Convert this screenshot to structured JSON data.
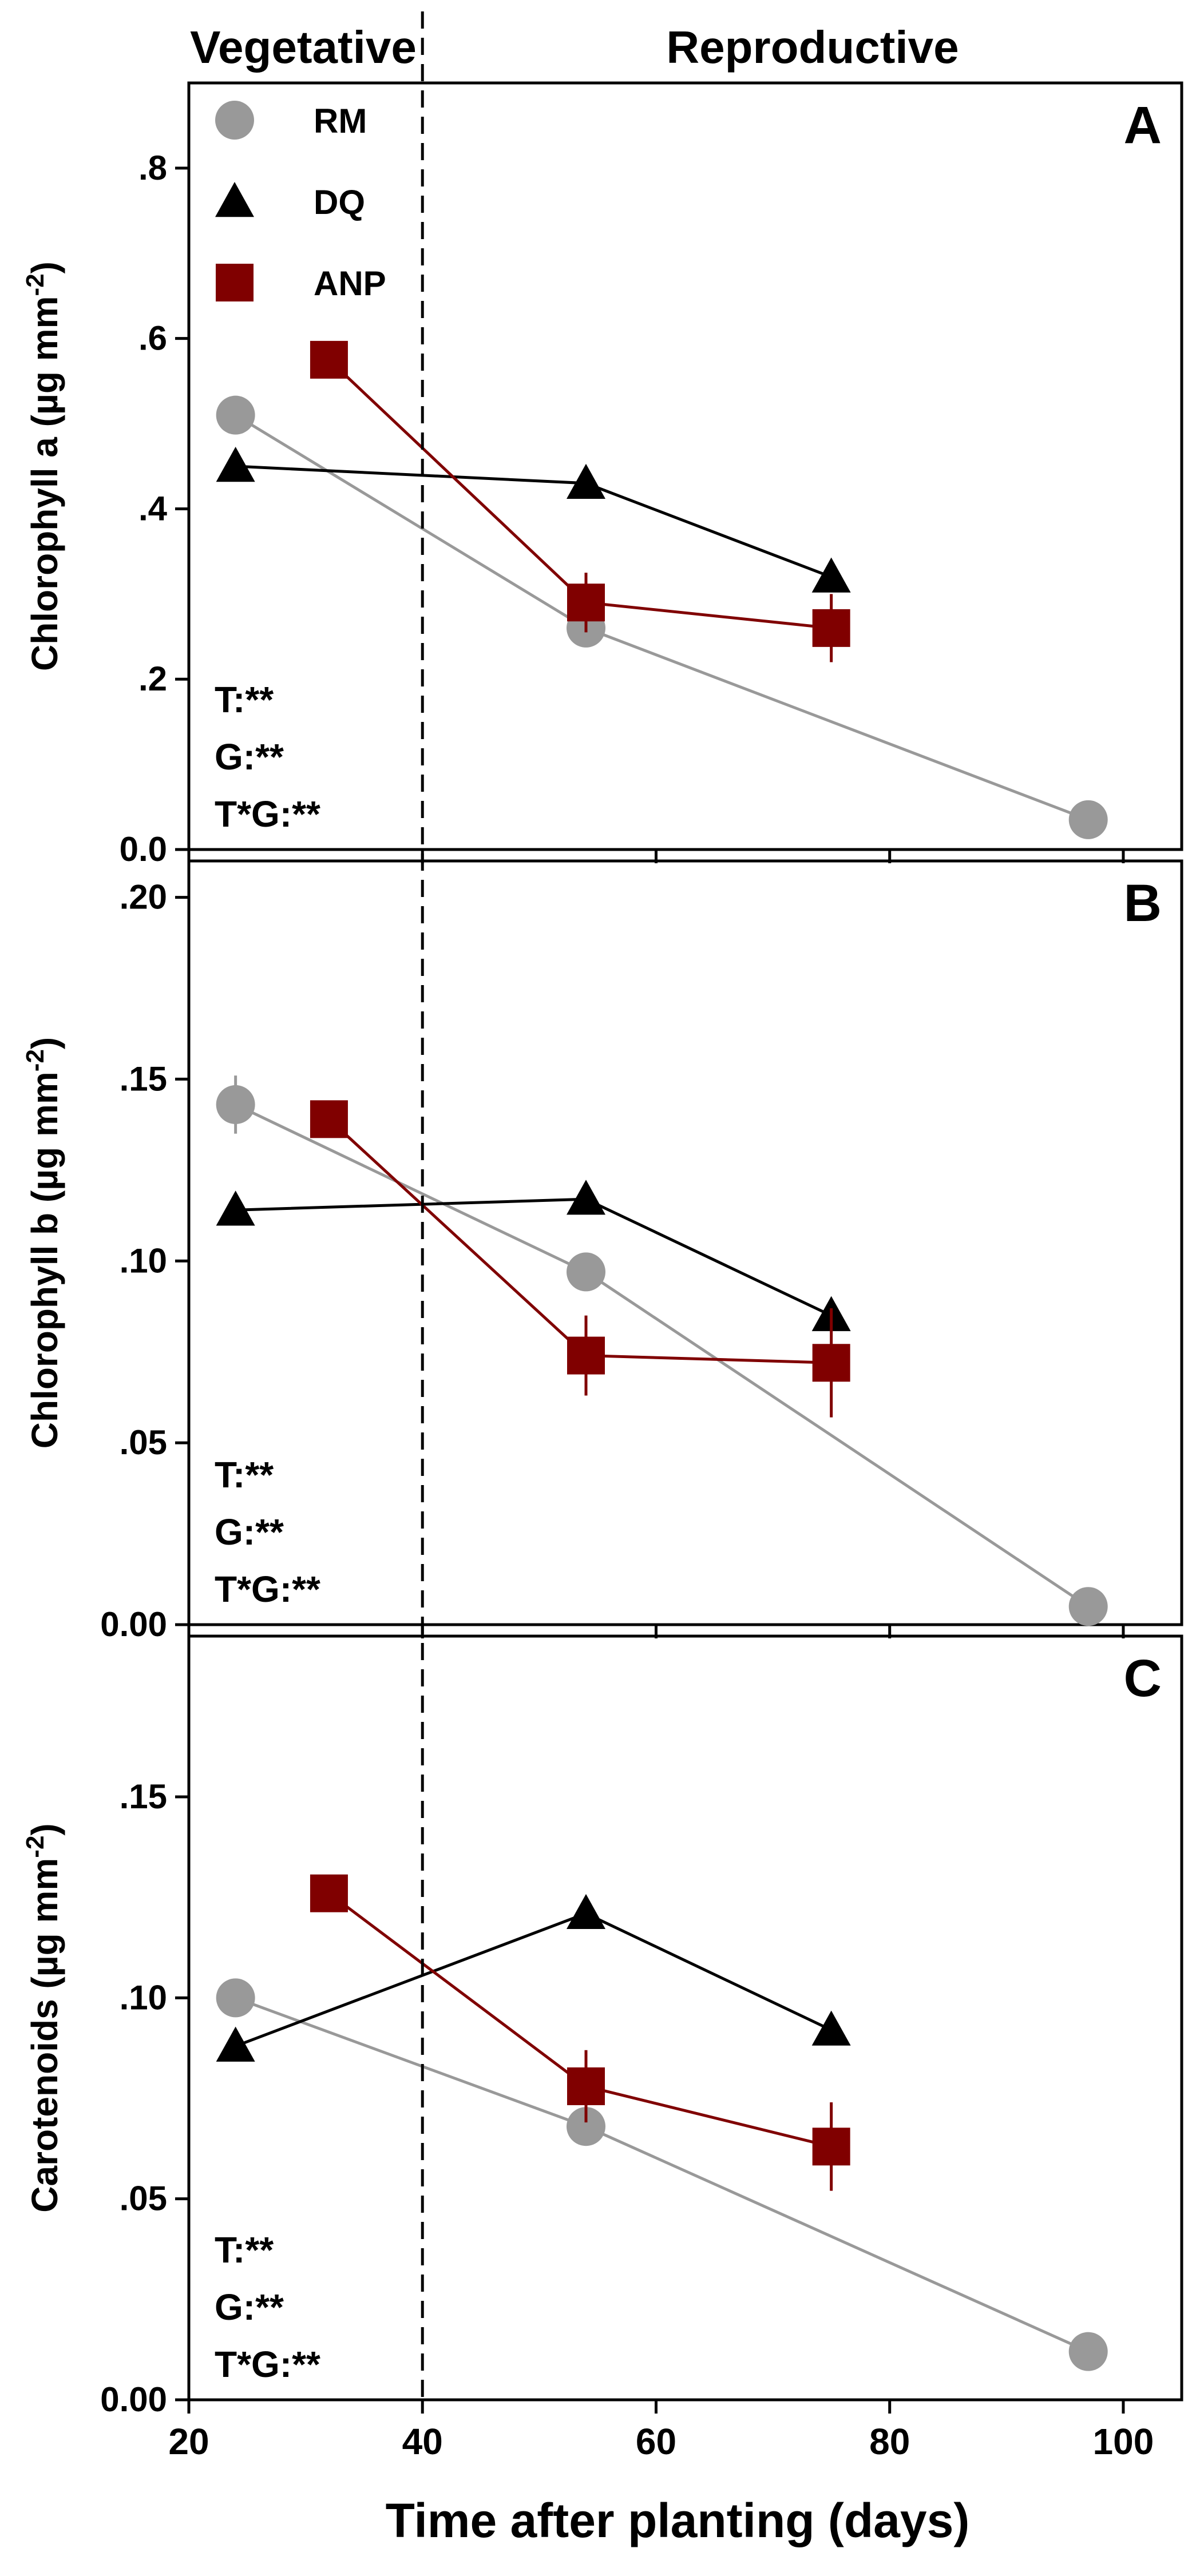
{
  "chart_data": [
    {
      "type": "line",
      "panel_letter": "A",
      "title": "",
      "ylabel": "Chlorophyll a (µg mm",
      "ylabel_sup": "-2",
      "ylabel_close": ")",
      "ylim": [
        0,
        0.9
      ],
      "yticks": [
        0,
        0.2,
        0.4,
        0.6,
        0.8
      ],
      "ytick_labels": [
        "0.0",
        ".2",
        ".4",
        ".6",
        ".8"
      ],
      "stats": [
        "T:**",
        "G:**",
        "T*G:**"
      ],
      "series": [
        {
          "name": "RM",
          "marker": "circle",
          "color": "#999999",
          "line_color": "#999999",
          "x": [
            24,
            54,
            97
          ],
          "y": [
            0.51,
            0.26,
            0.035
          ],
          "err": [
            0.01,
            0.01,
            0.0
          ]
        },
        {
          "name": "DQ",
          "marker": "triangle",
          "color": "#000000",
          "line_color": "#000000",
          "x": [
            24,
            54,
            75
          ],
          "y": [
            0.45,
            0.43,
            0.32
          ],
          "err": [
            0.01,
            0.01,
            0.01
          ]
        },
        {
          "name": "ANP",
          "marker": "square",
          "color": "#800000",
          "line_color": "#800000",
          "x": [
            32,
            54,
            75
          ],
          "y": [
            0.575,
            0.29,
            0.26
          ],
          "err": [
            0.01,
            0.035,
            0.04
          ]
        }
      ]
    },
    {
      "type": "line",
      "panel_letter": "B",
      "title": "",
      "ylabel": "Chlorophyll b (µg mm",
      "ylabel_sup": "-2",
      "ylabel_close": ")",
      "ylim": [
        0,
        0.21
      ],
      "yticks": [
        0,
        0.05,
        0.1,
        0.15,
        0.2
      ],
      "ytick_labels": [
        "0.00",
        ".05",
        ".10",
        ".15",
        ".20"
      ],
      "stats": [
        "T:**",
        "G:**",
        "T*G:**"
      ],
      "series": [
        {
          "name": "RM",
          "marker": "circle",
          "color": "#999999",
          "line_color": "#999999",
          "x": [
            24,
            54,
            97
          ],
          "y": [
            0.143,
            0.097,
            0.005
          ],
          "err": [
            0.008,
            0.003,
            0.0
          ]
        },
        {
          "name": "DQ",
          "marker": "triangle",
          "color": "#000000",
          "line_color": "#000000",
          "x": [
            24,
            54,
            75
          ],
          "y": [
            0.114,
            0.117,
            0.085
          ],
          "err": [
            0.002,
            0.002,
            0.003
          ]
        },
        {
          "name": "ANP",
          "marker": "square",
          "color": "#800000",
          "line_color": "#800000",
          "x": [
            32,
            54,
            75
          ],
          "y": [
            0.139,
            0.074,
            0.072
          ],
          "err": [
            0.003,
            0.011,
            0.015
          ]
        }
      ]
    },
    {
      "type": "line",
      "panel_letter": "C",
      "title": "",
      "ylabel": "Carotenoids (µg mm",
      "ylabel_sup": "-2",
      "ylabel_close": ")",
      "ylim": [
        0,
        0.19
      ],
      "yticks": [
        0,
        0.05,
        0.1,
        0.15
      ],
      "ytick_labels": [
        "0.00",
        ".05",
        ".10",
        ".15"
      ],
      "stats": [
        "T:**",
        "G:**",
        "T*G:**"
      ],
      "series": [
        {
          "name": "RM",
          "marker": "circle",
          "color": "#999999",
          "line_color": "#999999",
          "x": [
            24,
            54,
            97
          ],
          "y": [
            0.1,
            0.068,
            0.012
          ],
          "err": [
            0.002,
            0.002,
            0.0
          ]
        },
        {
          "name": "DQ",
          "marker": "triangle",
          "color": "#000000",
          "line_color": "#000000",
          "x": [
            24,
            54,
            75
          ],
          "y": [
            0.088,
            0.121,
            0.092
          ],
          "err": [
            0.002,
            0.002,
            0.002
          ]
        },
        {
          "name": "ANP",
          "marker": "square",
          "color": "#800000",
          "line_color": "#800000",
          "x": [
            32,
            54,
            75
          ],
          "y": [
            0.126,
            0.078,
            0.063
          ],
          "err": [
            0.003,
            0.009,
            0.011
          ]
        }
      ]
    }
  ],
  "x_axis": {
    "label": "Time after planting (days)",
    "xlim": [
      20,
      105
    ],
    "ticks": [
      20,
      40,
      60,
      80,
      100
    ],
    "tick_labels": [
      "20",
      "40",
      "60",
      "80",
      "100"
    ]
  },
  "phases": {
    "vegetative": "Vegetative",
    "reproductive": "Reproductive",
    "divider_x": 40
  },
  "legend": [
    {
      "name": "RM",
      "marker": "circle"
    },
    {
      "name": "DQ",
      "marker": "triangle"
    },
    {
      "name": "ANP",
      "marker": "square"
    }
  ]
}
